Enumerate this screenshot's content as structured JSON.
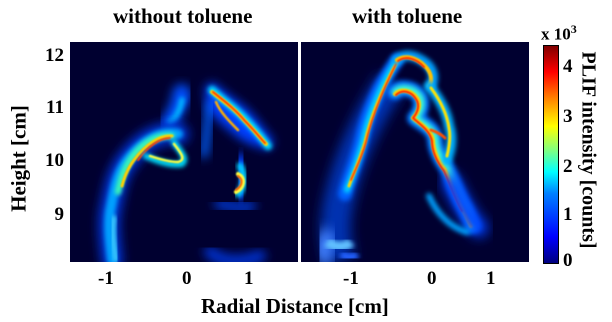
{
  "titles": {
    "left": "without toluene",
    "right": "with toluene"
  },
  "y_axis": {
    "label": "Height [cm]",
    "ticks": [
      "12",
      "11",
      "10",
      "9"
    ]
  },
  "x_axis": {
    "label": "Radial Distance [cm]",
    "ticks": [
      "-1",
      "0",
      "1"
    ]
  },
  "colorbar": {
    "label": "PLIF intensity [counts]",
    "multiplier": "x 10",
    "exponent": "3",
    "ticks": [
      "4",
      "3",
      "2",
      "1",
      "0"
    ]
  }
}
